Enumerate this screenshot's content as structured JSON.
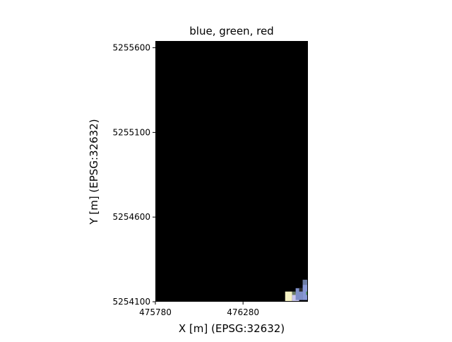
{
  "chart_data": {
    "type": "heatmap",
    "title": "blue, green, red",
    "xlabel": "X [m] (EPSG:32632)",
    "ylabel": "Y [m] (EPSG:32632)",
    "xlim": [
      475780,
      476650
    ],
    "ylim": [
      5254100,
      5255640
    ],
    "x_ticks": [
      475780,
      476280
    ],
    "y_ticks": [
      5254100,
      5254600,
      5255100,
      5255600
    ],
    "x_tick_labels": [
      "475780",
      "476280"
    ],
    "y_tick_labels": [
      "5254100",
      "5254600",
      "5255100",
      "5255600"
    ],
    "background_color": "#000000",
    "grid": false,
    "legend": "none",
    "image_patches": [
      {
        "x0": 476520,
        "x1": 476560,
        "y0": 5254100,
        "y1": 5254160,
        "color": "#f6f2c4"
      },
      {
        "x0": 476560,
        "x1": 476600,
        "y0": 5254100,
        "y1": 5254150,
        "color": "#c9c6ee"
      },
      {
        "x0": 476580,
        "x1": 476620,
        "y0": 5254110,
        "y1": 5254180,
        "color": "#7f8fc8"
      },
      {
        "x0": 476620,
        "x1": 476650,
        "y0": 5254110,
        "y1": 5254200,
        "color": "#8898d6"
      },
      {
        "x0": 476620,
        "x1": 476650,
        "y0": 5254200,
        "y1": 5254230,
        "color": "#6e7ea6"
      },
      {
        "x0": 476640,
        "x1": 476650,
        "y0": 5254140,
        "y1": 5254160,
        "color": "#3f8a4a"
      },
      {
        "x0": 476560,
        "x1": 476580,
        "y0": 5254140,
        "y1": 5254160,
        "color": "#6a7b63"
      },
      {
        "x0": 476600,
        "x1": 476620,
        "y0": 5254160,
        "y1": 5254180,
        "color": "#2a2a2a"
      }
    ]
  }
}
